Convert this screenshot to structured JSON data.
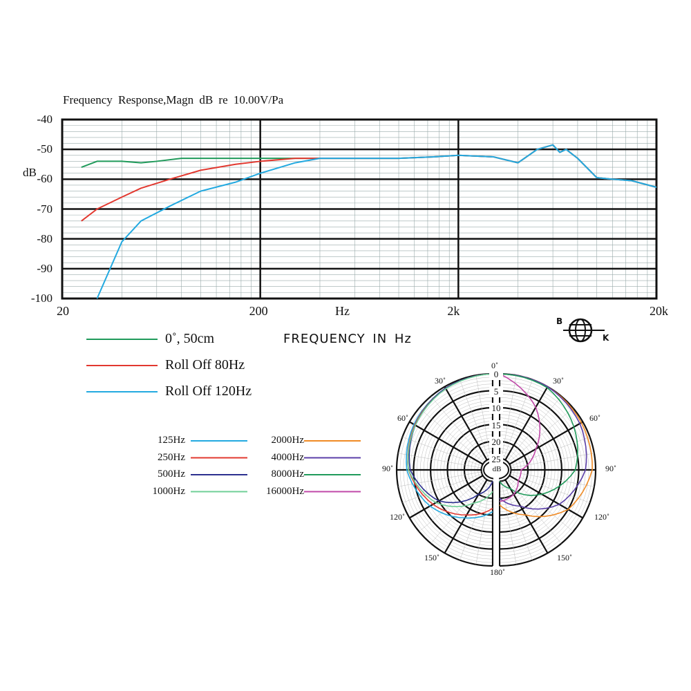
{
  "chart_data": [
    {
      "type": "line",
      "title": "Frequency   Response,Magn   dB re 10.00V/Pa",
      "xlabel": "FREQUENCY IN Hz",
      "xunit": "Hz",
      "ylabel": "dB",
      "xscale": "log",
      "xlim": [
        20,
        20000
      ],
      "ylim": [
        -100,
        -40
      ],
      "xticks": [
        "20",
        "200",
        "2k",
        "20k"
      ],
      "yticks": [
        "-40",
        "-50",
        "-60",
        "-70",
        "-80",
        "-90",
        "-100"
      ],
      "grid": true,
      "legend_position": "bottom-left",
      "series": [
        {
          "name": "0˚, 50cm",
          "color": "#1f9a5a",
          "x": [
            25,
            30,
            40,
            50,
            60,
            80,
            100,
            200,
            300,
            500,
            1000,
            1500,
            2000,
            3000,
            4000,
            5000,
            6000,
            6500,
            7000,
            8000,
            10000,
            12000,
            15000,
            20000
          ],
          "y": [
            -56,
            -54,
            -54,
            -54.5,
            -54,
            -53,
            -53,
            -53,
            -53,
            -53,
            -53,
            -52.5,
            -52,
            -52.5,
            -54.5,
            -50,
            -48.5,
            -51,
            -50,
            -53,
            -59.5,
            -60,
            -60.5,
            -62.7
          ]
        },
        {
          "name": "Roll Off  80Hz",
          "color": "#e2382f",
          "x": [
            25,
            30,
            40,
            50,
            70,
            100,
            150,
            200,
            300,
            500,
            1000,
            1500,
            2000,
            3000,
            4000,
            5000,
            6000,
            6500,
            7000,
            8000,
            10000,
            12000,
            15000,
            20000
          ],
          "y": [
            -74,
            -70,
            -66,
            -63,
            -60,
            -57,
            -55,
            -54,
            -53,
            -53,
            -53,
            -52.5,
            -52,
            -52.5,
            -54.5,
            -50,
            -48.5,
            -51,
            -50,
            -53,
            -59.5,
            -60,
            -60.5,
            -62.7
          ]
        },
        {
          "name": "Roll Off  120Hz",
          "color": "#22a9e0",
          "x": [
            30,
            40,
            50,
            70,
            100,
            150,
            200,
            300,
            400,
            500,
            1000,
            1500,
            2000,
            3000,
            4000,
            5000,
            6000,
            6500,
            7000,
            8000,
            10000,
            12000,
            15000,
            20000
          ],
          "y": [
            -100,
            -81,
            -74,
            -69,
            -64,
            -61,
            -58,
            -54.5,
            -53,
            -53,
            -53,
            -52.5,
            -52,
            -52.5,
            -54.5,
            -50,
            -48.5,
            -51,
            -50,
            -53,
            -59.5,
            -60,
            -60.5,
            -62.7
          ]
        }
      ]
    },
    {
      "type": "polar",
      "rlabel": "dB",
      "angle_ticks": [
        "0˚",
        "30˚",
        "60˚",
        "90˚",
        "120˚",
        "150˚",
        "180˚"
      ],
      "r_ticks": [
        "0",
        "5",
        "10",
        "15",
        "20",
        "25"
      ],
      "angles": [
        0,
        30,
        60,
        90,
        120,
        150,
        180
      ],
      "series": [
        {
          "name": "125Hz",
          "color": "#22a9e0",
          "side": "left",
          "r": [
            0,
            0.5,
            1.5,
            3,
            7,
            12,
            16
          ]
        },
        {
          "name": "250Hz",
          "color": "#e2382f",
          "side": "left",
          "r": [
            0,
            0.5,
            1.8,
            3.5,
            8,
            13,
            17
          ]
        },
        {
          "name": "500Hz",
          "color": "#2b2f8f",
          "side": "left",
          "r": [
            0,
            0.5,
            2,
            4,
            10,
            20,
            25
          ]
        },
        {
          "name": "1000Hz",
          "color": "#6fcf97",
          "side": "left",
          "r": [
            0,
            0.7,
            2,
            3.5,
            9,
            17,
            22
          ]
        },
        {
          "name": "2000Hz",
          "color": "#f08a24",
          "side": "right",
          "r": [
            0,
            0,
            0.5,
            1,
            5,
            13,
            18
          ]
        },
        {
          "name": "4000Hz",
          "color": "#5b3fa8",
          "side": "right",
          "r": [
            0,
            0,
            1,
            3,
            8,
            16,
            20
          ]
        },
        {
          "name": "8000Hz",
          "color": "#1f9a5a",
          "side": "right",
          "r": [
            0,
            0.3,
            3,
            6,
            14,
            22,
            25
          ]
        },
        {
          "name": "16000Hz",
          "color": "#c048a8",
          "side": "right",
          "r": [
            0,
            7,
            16,
            22,
            22,
            20,
            19
          ]
        }
      ]
    }
  ],
  "logo": {
    "letters": [
      "B",
      "K"
    ]
  }
}
